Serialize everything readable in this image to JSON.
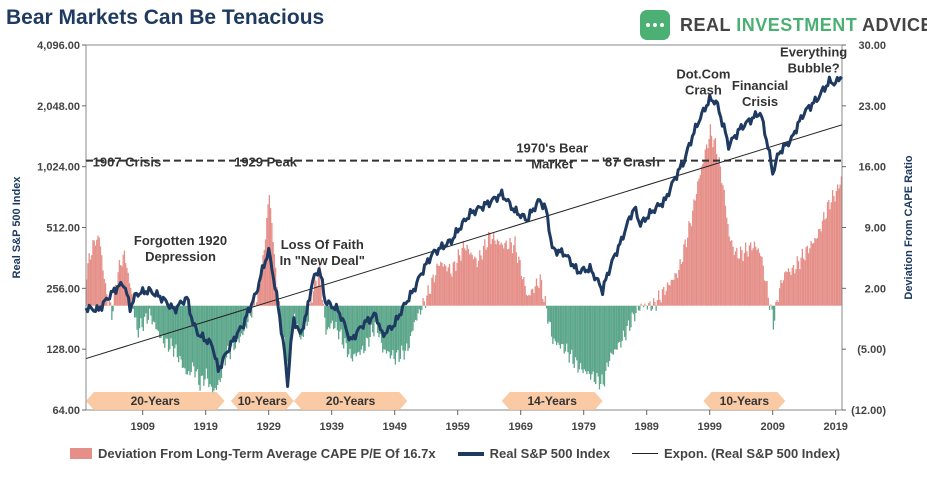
{
  "title": "Bear Markets Can Be Tenacious",
  "brand": {
    "name_part1": "REAL ",
    "name_part2": "INVESTMENT",
    "name_part3": " ADVICE",
    "logo_icon": "chat-bubble-icon",
    "logo_color": "#4caf73"
  },
  "legend": {
    "area": "Deviation From Long-Term Average CAPE P/E Of 16.7x",
    "line": "Real S&P 500 Index",
    "trend": "Expon. (Real S&P 500 Index)"
  },
  "chart_data": {
    "type": "line",
    "xlabel": "",
    "ylabel_left": "Real S&P 500 Index",
    "ylabel_right": "Deviation From CAPE Ratio",
    "x_range": [
      1900,
      2020
    ],
    "x_ticks": [
      "1909",
      "1919",
      "1929",
      "1939",
      "1949",
      "1959",
      "1969",
      "1979",
      "1989",
      "1999",
      "2009",
      "2019"
    ],
    "x_tick_years": [
      1909,
      1919,
      1929,
      1939,
      1949,
      1959,
      1969,
      1979,
      1989,
      1999,
      2009,
      2019
    ],
    "y_left": {
      "scale": "log2",
      "range": [
        64,
        4096
      ],
      "ticks": [
        64,
        128,
        256,
        512,
        1024,
        2048,
        4096
      ],
      "tick_labels": [
        "64.00",
        "128.00",
        "256.00",
        "512.00",
        "1,024.00",
        "2,048.00",
        "4,096.00"
      ]
    },
    "y_right": {
      "range": [
        -12,
        30
      ],
      "ticks": [
        -12,
        -5,
        2,
        9,
        16,
        23,
        30
      ],
      "tick_labels": [
        "(12.00)",
        "(5.00)",
        "2.00",
        "9.00",
        "16.00",
        "23.00",
        "30.00"
      ]
    },
    "colors": {
      "area_positive": "#e58f88",
      "area_negative": "#5ba68a",
      "index_line": "#1e3a60",
      "trend_line": "#222222",
      "dashed_line": "#333333",
      "band": "#f8c49a",
      "band_text": "#333333"
    },
    "series": [
      {
        "name": "Real S&P 500 Index",
        "x": [
          1900,
          1902,
          1905,
          1906,
          1907,
          1908,
          1910,
          1912,
          1914,
          1916,
          1917,
          1918,
          1920,
          1921,
          1923,
          1925,
          1927,
          1929,
          1930,
          1931,
          1932,
          1933,
          1934,
          1935,
          1936,
          1937,
          1938,
          1940,
          1942,
          1944,
          1946,
          1947,
          1949,
          1952,
          1955,
          1958,
          1961,
          1964,
          1966,
          1968,
          1970,
          1972,
          1973,
          1974,
          1976,
          1978,
          1980,
          1982,
          1985,
          1987,
          1988,
          1990,
          1992,
          1995,
          1997,
          1999,
          2000,
          2001,
          2002,
          2003,
          2004,
          2006,
          2007,
          2008,
          2009,
          2010,
          2012,
          2014,
          2016,
          2018,
          2019,
          2020
        ],
        "values": [
          205,
          200,
          260,
          270,
          205,
          240,
          250,
          230,
          200,
          230,
          170,
          150,
          135,
          100,
          135,
          170,
          240,
          390,
          260,
          160,
          85,
          180,
          150,
          190,
          280,
          320,
          220,
          200,
          140,
          170,
          190,
          150,
          170,
          250,
          380,
          440,
          600,
          680,
          750,
          620,
          560,
          700,
          630,
          400,
          380,
          310,
          320,
          250,
          440,
          640,
          530,
          620,
          700,
          1100,
          1650,
          2200,
          2150,
          1700,
          1300,
          1450,
          1600,
          1800,
          1900,
          1400,
          950,
          1200,
          1400,
          1900,
          2200,
          2700,
          2650,
          2900
        ]
      },
      {
        "name": "Deviation From Long-Term Average CAPE P/E Of 16.7x",
        "x": [
          1900,
          1901,
          1902,
          1903,
          1904,
          1905,
          1906,
          1907,
          1908,
          1910,
          1912,
          1914,
          1916,
          1917,
          1918,
          1919,
          1920,
          1921,
          1922,
          1923,
          1925,
          1927,
          1928,
          1929,
          1930,
          1931,
          1932,
          1933,
          1934,
          1935,
          1936,
          1937,
          1938,
          1939,
          1940,
          1942,
          1944,
          1946,
          1947,
          1949,
          1951,
          1952,
          1954,
          1956,
          1958,
          1960,
          1962,
          1964,
          1966,
          1968,
          1969,
          1970,
          1972,
          1974,
          1976,
          1978,
          1980,
          1982,
          1983,
          1985,
          1987,
          1988,
          1990,
          1992,
          1994,
          1996,
          1997,
          1998,
          1999,
          2000,
          2001,
          2002,
          2003,
          2004,
          2006,
          2007,
          2008,
          2009,
          2010,
          2011,
          2012,
          2014,
          2016,
          2018,
          2019,
          2020
        ],
        "values": [
          4,
          7,
          8,
          2,
          -1,
          4,
          6,
          2,
          -3,
          -1,
          -4,
          -5,
          -8,
          -7,
          -9,
          -8,
          -10,
          -9,
          -6,
          -5,
          -3,
          1,
          5,
          13,
          4,
          -3,
          -7,
          -1,
          -4,
          -2,
          2,
          4,
          -3,
          -2,
          -3,
          -6,
          -5,
          -2,
          -5,
          -6,
          -5,
          -2,
          1,
          5,
          4,
          7,
          5,
          8,
          7,
          7,
          4,
          1,
          3,
          -4,
          -5,
          -7,
          -8,
          -9,
          -6,
          -4,
          -1,
          0,
          0,
          2,
          4,
          10,
          14,
          17,
          20,
          18,
          14,
          8,
          6,
          6,
          7,
          6,
          2,
          -2,
          2,
          4,
          4,
          6,
          8,
          12,
          13,
          15
        ]
      },
      {
        "name": "Expon. (Real S&P 500 Index)",
        "x": [
          1900,
          2020
        ],
        "values": [
          115,
          1650
        ]
      }
    ],
    "reference_line": {
      "value": 16.7,
      "axis": "right",
      "style": "dashed"
    },
    "annotations": [
      {
        "text": "1907 Crisis",
        "x": 1906.5,
        "y": 1024
      },
      {
        "text": "1929 Peak",
        "x": 1928.5,
        "y": 1024
      },
      {
        "text": "Forgotten 1920\nDepression",
        "x": 1915,
        "y": 420
      },
      {
        "text": "Loss Of Faith\nIn \"New Deal\"",
        "x": 1937.5,
        "y": 400
      },
      {
        "text": "1970's Bear\nMarket",
        "x": 1974,
        "y": 1200
      },
      {
        "text": "'87 Crash",
        "x": 1986.5,
        "y": 1024
      },
      {
        "text": "Dot.Com\nCrash",
        "x": 1998,
        "y": 2800
      },
      {
        "text": "Financial\nCrisis",
        "x": 2007,
        "y": 2450
      },
      {
        "text": "Everything\nBubble?",
        "x": 2015.5,
        "y": 3600
      }
    ],
    "bands": [
      {
        "label": "20-Years",
        "start": 1900,
        "end": 1922
      },
      {
        "label": "10-Years",
        "start": 1923,
        "end": 1933
      },
      {
        "label": "20-Years",
        "start": 1933,
        "end": 1951
      },
      {
        "label": "14-Years",
        "start": 1966,
        "end": 1982
      },
      {
        "label": "10-Years",
        "start": 1998,
        "end": 2011
      }
    ]
  }
}
